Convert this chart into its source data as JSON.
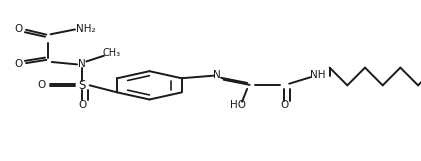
{
  "bg_color": "#ffffff",
  "line_color": "#1a1a1a",
  "line_width": 1.4,
  "font_size": 7.5,
  "figsize": [
    4.21,
    1.61
  ],
  "dpi": 100,
  "xlim": [
    0,
    1
  ],
  "ylim": [
    0,
    1
  ]
}
